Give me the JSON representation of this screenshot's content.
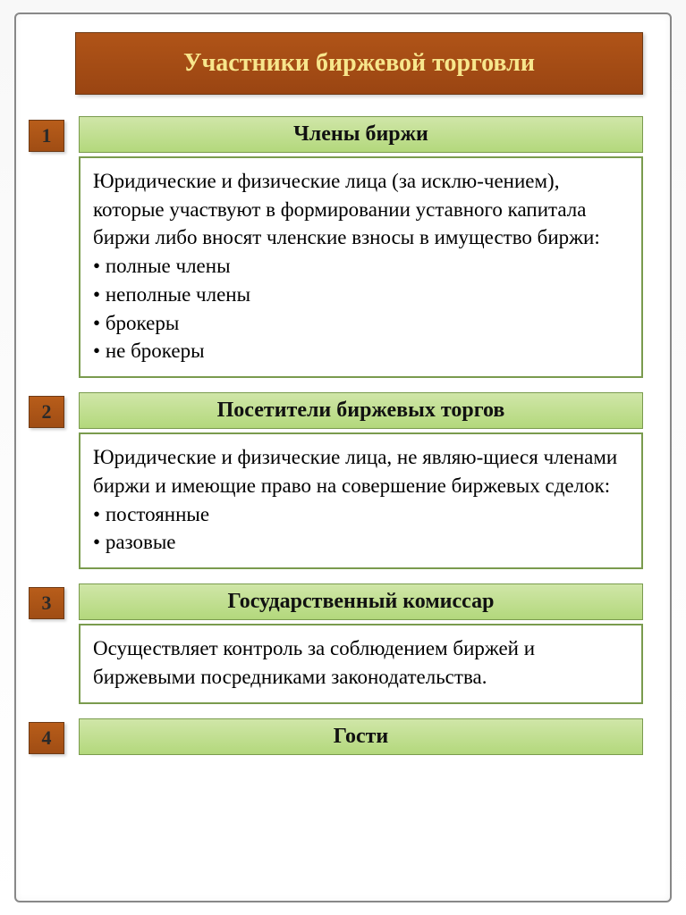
{
  "title": "Участники биржевой торговли",
  "colors": {
    "title_bg": "#9a4512",
    "title_text": "#f7e68c",
    "number_bg": "#a04d14",
    "number_text": "#2a2a2a",
    "header_bg": "#b3d87c",
    "border_green": "#7a9b4e",
    "border_brown": "#6e3a15",
    "body_text": "#000000"
  },
  "sections": [
    {
      "number": "1",
      "header": "Члены биржи",
      "intro": "Юридические и физические лица (за исклю-чением), которые участвуют в формировании уставного капитала биржи либо вносят членские взносы в имущество биржи:",
      "bullets": [
        "полные члены",
        "неполные члены",
        "брокеры",
        "не брокеры"
      ]
    },
    {
      "number": "2",
      "header": "Посетители биржевых торгов",
      "intro": "Юридические и физические лица, не являю-щиеся членами биржи и имеющие право на совершение биржевых сделок:",
      "bullets": [
        "постоянные",
        "разовые"
      ]
    },
    {
      "number": "3",
      "header": "Государственный комиссар",
      "body": "Осуществляет контроль за соблюдением биржей и биржевыми посредниками законодательства."
    },
    {
      "number": "4",
      "header": "Гости"
    }
  ]
}
